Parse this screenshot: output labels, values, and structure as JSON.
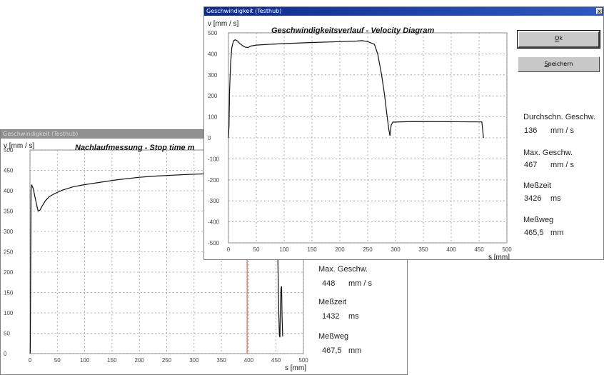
{
  "windows": [
    {
      "id": "stop",
      "title": "Geschwindigkeit (Testhub)",
      "close_glyph": "",
      "chart_data": {
        "type": "line",
        "title": "Nachlaufmessung - Stop time m",
        "ylabel": "v [mm / s]",
        "xlabel": "s [mm]",
        "xlim": [
          0,
          500
        ],
        "ylim": [
          0,
          500
        ],
        "xticks": [
          "0",
          "50",
          "100",
          "150",
          "200",
          "250",
          "300",
          "350",
          "400",
          "450",
          "500"
        ],
        "yticks": [
          "500",
          "450",
          "400",
          "350",
          "300",
          "250",
          "200",
          "150",
          "100",
          "50",
          "0"
        ],
        "grid": true,
        "series": [
          {
            "values_xy": [
              [
                0,
                0
              ],
              [
                0.5,
                5
              ],
              [
                1.5,
                240
              ],
              [
                2,
                400
              ],
              [
                3,
                415
              ],
              [
                6,
                405
              ],
              [
                9,
                385
              ],
              [
                13,
                360
              ],
              [
                15,
                350
              ],
              [
                18,
                352
              ],
              [
                22,
                362
              ],
              [
                28,
                375
              ],
              [
                35,
                385
              ],
              [
                45,
                393
              ],
              [
                60,
                402
              ],
              [
                80,
                410
              ],
              [
                100,
                415
              ],
              [
                130,
                421
              ],
              [
                160,
                427
              ],
              [
                200,
                433
              ],
              [
                230,
                436
              ],
              [
                260,
                438
              ],
              [
                290,
                440
              ],
              [
                330,
                442
              ],
              [
                380,
                444
              ],
              [
                450,
                446
              ]
            ]
          }
        ],
        "overlay_series": [
          {
            "values_xy": [
              [
                450,
                446
              ],
              [
                451,
                430
              ],
              [
                453,
                250
              ],
              [
                455,
                100
              ],
              [
                456,
                45
              ],
              [
                457,
                40
              ],
              [
                458,
                120
              ],
              [
                459,
                160
              ],
              [
                460,
                165
              ],
              [
                461,
                90
              ],
              [
                462,
                42
              ]
            ]
          }
        ],
        "marker_line_x": 397,
        "marker_color": "#e8321e"
      },
      "stats": [
        {
          "label": "Max. Geschw.",
          "value": "448",
          "unit": "mm / s"
        },
        {
          "label": "Meßzeit",
          "value": "1432",
          "unit": "ms"
        },
        {
          "label": "Meßweg",
          "value": "467,5",
          "unit": "mm"
        }
      ]
    },
    {
      "id": "velocity",
      "title": "Geschwindigkeit (Testhub)",
      "close_glyph": "x",
      "chart_data": {
        "type": "line",
        "title": "Geschwindigkeitsverlauf - Velocity Diagram",
        "ylabel": "v [mm / s]",
        "xlabel": "s [mm]",
        "xlim": [
          0,
          500
        ],
        "ylim": [
          -500,
          500
        ],
        "xticks": [
          "0",
          "50",
          "100",
          "150",
          "200",
          "250",
          "300",
          "350",
          "400",
          "450",
          "500"
        ],
        "yticks": [
          "500",
          "400",
          "300",
          "200",
          "100",
          "0",
          "-100",
          "-200",
          "-300",
          "-400",
          "-500"
        ],
        "grid": true,
        "series": [
          {
            "values_xy": [
              [
                0,
                0
              ],
              [
                1,
                60
              ],
              [
                2,
                230
              ],
              [
                4,
                360
              ],
              [
                6,
                430
              ],
              [
                9,
                462
              ],
              [
                12,
                467
              ],
              [
                16,
                462
              ],
              [
                20,
                450
              ],
              [
                25,
                440
              ],
              [
                30,
                432
              ],
              [
                35,
                430
              ],
              [
                40,
                437
              ],
              [
                50,
                442
              ],
              [
                70,
                445
              ],
              [
                100,
                449
              ],
              [
                150,
                454
              ],
              [
                200,
                458
              ],
              [
                230,
                461
              ],
              [
                240,
                463
              ],
              [
                250,
                458
              ],
              [
                262,
                446
              ],
              [
                268,
                400
              ],
              [
                275,
                300
              ],
              [
                280,
                210
              ],
              [
                285,
                100
              ],
              [
                288,
                40
              ],
              [
                290,
                10
              ],
              [
                292,
                60
              ],
              [
                295,
                75
              ],
              [
                330,
                78
              ],
              [
                400,
                77
              ],
              [
                455,
                76
              ],
              [
                458,
                0
              ]
            ]
          }
        ]
      },
      "buttons": [
        {
          "label": "Ok",
          "mnemonic": "O"
        },
        {
          "label": "Speichern",
          "mnemonic": "S"
        }
      ],
      "stats": [
        {
          "label": "Durchschn. Geschw.",
          "value": "136",
          "unit": "mm / s"
        },
        {
          "label": "Max. Geschw.",
          "value": "467",
          "unit": "mm / s"
        },
        {
          "label": "Meßzeit",
          "value": "3426",
          "unit": "ms"
        },
        {
          "label": "Meßweg",
          "value": "465,5",
          "unit": "mm"
        }
      ]
    }
  ]
}
